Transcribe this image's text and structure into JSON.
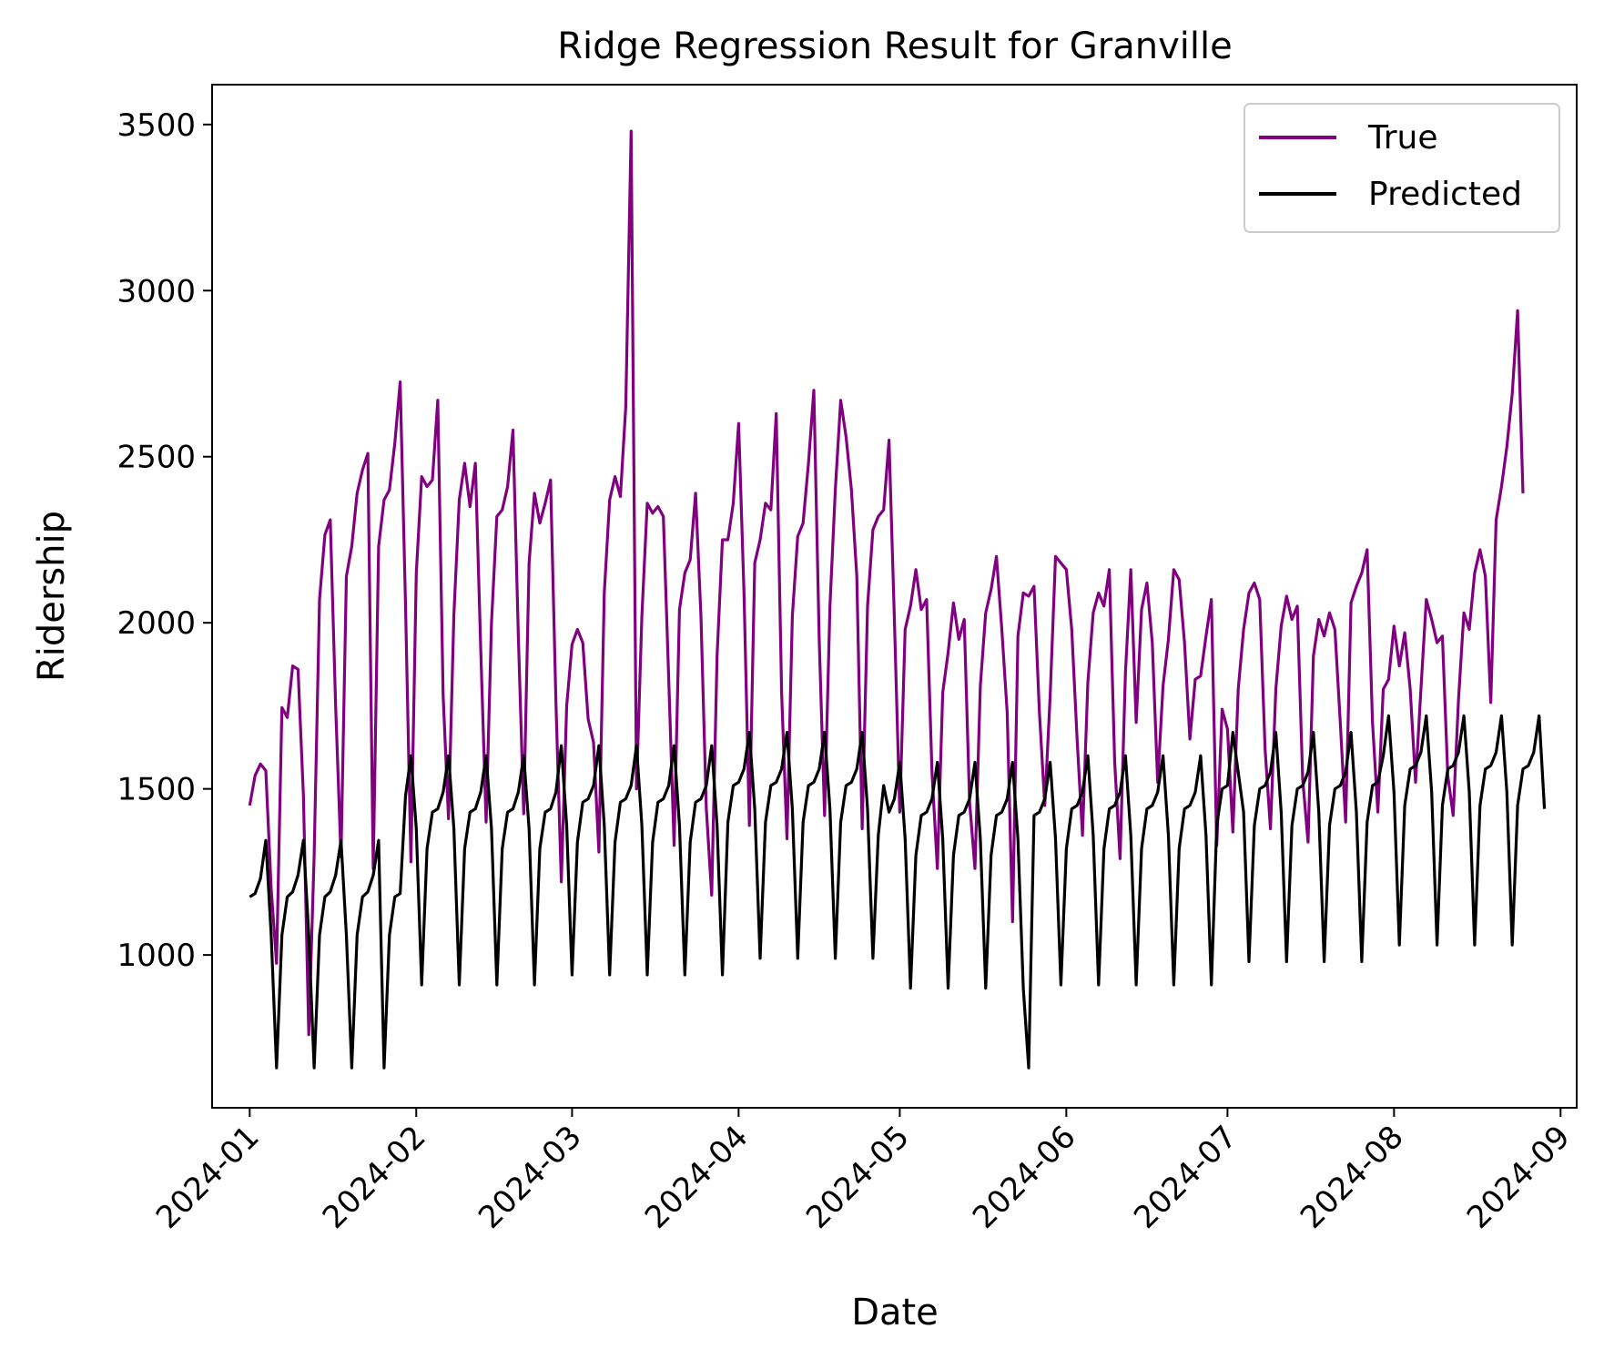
{
  "chart_data": {
    "type": "line",
    "title": "Ridge Regression Result for Granville",
    "xlabel": "Date",
    "ylabel": "Ridership",
    "x_ticks": [
      "2024-01",
      "2024-02",
      "2024-03",
      "2024-04",
      "2024-05",
      "2024-06",
      "2024-07",
      "2024-08",
      "2024-09"
    ],
    "y_ticks": [
      1000,
      1500,
      2000,
      2500,
      3000,
      3500
    ],
    "xlim": [
      "2023-12-25",
      "2024-09-04"
    ],
    "ylim": [
      540,
      3620
    ],
    "grid": false,
    "legend_position": "upper right",
    "x_start": "2024-01-01",
    "series": [
      {
        "name": "True",
        "color": "#800080",
        "values": [
          1450,
          1540,
          1575,
          1555,
          1200,
          975,
          1745,
          1715,
          1870,
          1860,
          1480,
          760,
          1300,
          2070,
          2265,
          2310,
          1750,
          1295,
          2140,
          2230,
          2390,
          2460,
          2510,
          1260,
          2230,
          2370,
          2400,
          2540,
          2725,
          2050,
          1280,
          2150,
          2440,
          2410,
          2430,
          2670,
          1780,
          1410,
          2025,
          2370,
          2480,
          2350,
          2480,
          1920,
          1400,
          2000,
          2320,
          2340,
          2410,
          2580,
          1960,
          1425,
          2180,
          2390,
          2300,
          2360,
          2430,
          1760,
          1220,
          1750,
          1935,
          1980,
          1940,
          1710,
          1640,
          1310,
          2090,
          2370,
          2440,
          2380,
          2650,
          3480,
          1500,
          2020,
          2360,
          2330,
          2350,
          2320,
          1830,
          1330,
          2040,
          2150,
          2190,
          2390,
          2020,
          1440,
          1180,
          1900,
          2250,
          2250,
          2360,
          2600,
          2090,
          1390,
          2180,
          2250,
          2360,
          2340,
          2630,
          1790,
          1350,
          2020,
          2260,
          2300,
          2480,
          2700,
          1950,
          1420,
          2050,
          2400,
          2670,
          2560,
          2400,
          2140,
          1380,
          2050,
          2280,
          2320,
          2340,
          2550,
          2010,
          1430,
          1980,
          2050,
          2160,
          2040,
          2070,
          1550,
          1260,
          1790,
          1910,
          2060,
          1950,
          2010,
          1460,
          1260,
          1810,
          2030,
          2100,
          2200,
          1980,
          1730,
          1100,
          1960,
          2090,
          2080,
          2110,
          1730,
          1450,
          1780,
          2200,
          2180,
          2160,
          1980,
          1650,
          1360,
          1820,
          2030,
          2090,
          2050,
          2160,
          1580,
          1290,
          1850,
          2160,
          1700,
          2040,
          2120,
          1940,
          1520,
          1810,
          1950,
          2160,
          2130,
          1940,
          1650,
          1830,
          1840,
          1960,
          2070,
          1330,
          1740,
          1680,
          1370,
          1800,
          1980,
          2090,
          2120,
          2070,
          1620,
          1380,
          1800,
          1990,
          2080,
          2010,
          2050,
          1530,
          1340,
          1900,
          2010,
          1960,
          2030,
          1980,
          1700,
          1400,
          2060,
          2110,
          2150,
          2220,
          1700,
          1430,
          1800,
          1830,
          1990,
          1870,
          1970,
          1800,
          1520,
          1800,
          2070,
          2010,
          1940,
          1960,
          1540,
          1420,
          1770,
          2030,
          1980,
          2150,
          2220,
          2140,
          1760,
          2310,
          2410,
          2530,
          2690,
          2940,
          2390
        ]
      },
      {
        "name": "Predicted",
        "color": "#000000",
        "values": [
          1175,
          1185,
          1230,
          1345,
          1060,
          660,
          1060,
          1175,
          1190,
          1240,
          1345,
          1060,
          660,
          1060,
          1175,
          1190,
          1240,
          1345,
          1060,
          660,
          1060,
          1175,
          1190,
          1240,
          1345,
          660,
          1060,
          1175,
          1185,
          1480,
          1600,
          1380,
          910,
          1320,
          1430,
          1440,
          1490,
          1600,
          1380,
          910,
          1320,
          1430,
          1440,
          1490,
          1600,
          1380,
          910,
          1320,
          1430,
          1440,
          1490,
          1600,
          1380,
          910,
          1320,
          1430,
          1440,
          1490,
          1630,
          1390,
          940,
          1340,
          1460,
          1470,
          1510,
          1630,
          1390,
          940,
          1340,
          1460,
          1470,
          1510,
          1630,
          1390,
          940,
          1340,
          1460,
          1470,
          1510,
          1630,
          1390,
          940,
          1340,
          1460,
          1470,
          1510,
          1630,
          1390,
          940,
          1400,
          1510,
          1520,
          1560,
          1670,
          1440,
          990,
          1400,
          1510,
          1520,
          1560,
          1670,
          1440,
          990,
          1400,
          1510,
          1520,
          1560,
          1670,
          1440,
          990,
          1400,
          1510,
          1520,
          1560,
          1670,
          1440,
          990,
          1360,
          1510,
          1430,
          1470,
          1580,
          1350,
          900,
          1300,
          1420,
          1430,
          1470,
          1580,
          1350,
          900,
          1300,
          1420,
          1430,
          1470,
          1580,
          1350,
          900,
          1300,
          1420,
          1430,
          1470,
          1580,
          1350,
          900,
          660,
          1420,
          1430,
          1470,
          1580,
          1350,
          910,
          1320,
          1440,
          1450,
          1490,
          1600,
          1360,
          910,
          1320,
          1440,
          1450,
          1490,
          1600,
          1360,
          910,
          1320,
          1440,
          1450,
          1490,
          1600,
          1360,
          910,
          1320,
          1440,
          1450,
          1490,
          1600,
          1360,
          910,
          1390,
          1500,
          1510,
          1670,
          1550,
          1430,
          980,
          1390,
          1500,
          1510,
          1550,
          1670,
          1430,
          980,
          1390,
          1500,
          1510,
          1550,
          1670,
          1430,
          980,
          1390,
          1500,
          1510,
          1550,
          1670,
          1430,
          980,
          1400,
          1510,
          1520,
          1600,
          1720,
          1490,
          1030,
          1450,
          1560,
          1570,
          1610,
          1720,
          1490,
          1030,
          1450,
          1560,
          1570,
          1610,
          1720,
          1490,
          1030,
          1450,
          1560,
          1570,
          1610,
          1720,
          1490,
          1030,
          1450,
          1560,
          1570,
          1610,
          1720,
          1440
        ]
      }
    ]
  }
}
